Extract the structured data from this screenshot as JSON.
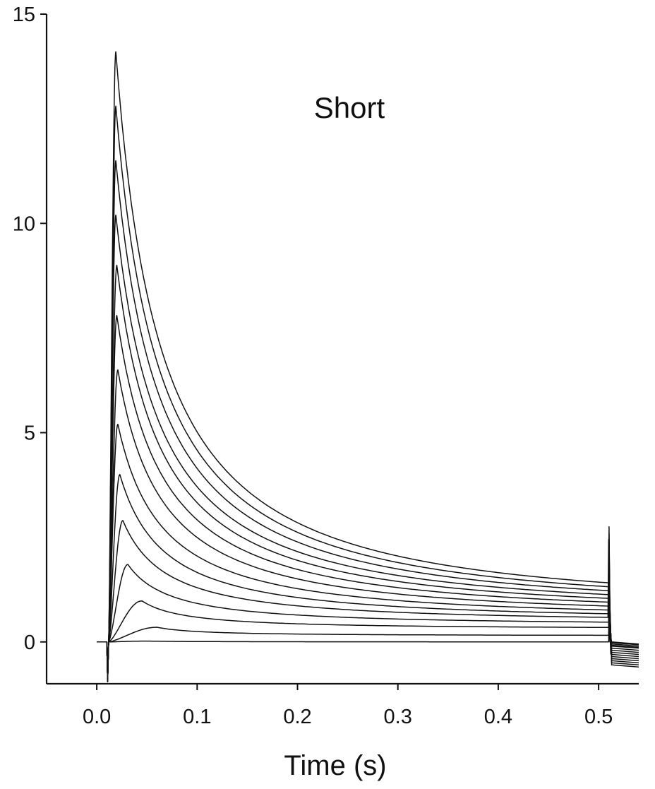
{
  "chart_data": {
    "type": "line",
    "title": "",
    "annotation": "Short",
    "xlabel": "Time (s)",
    "ylabel": "",
    "xlim": [
      -0.05,
      0.54
    ],
    "ylim": [
      -1,
      15
    ],
    "x_ticks": [
      0.0,
      0.1,
      0.2,
      0.3,
      0.4,
      0.5
    ],
    "x_tick_labels": [
      "0.0",
      "0.1",
      "0.2",
      "0.3",
      "0.4",
      "0.5"
    ],
    "y_ticks": [
      0,
      5,
      10,
      15
    ],
    "y_tick_labels": [
      "0",
      "5",
      "10",
      "15"
    ],
    "grid": false,
    "legend": "none",
    "pulse_start_s": 0.01,
    "pulse_end_s": 0.51,
    "series": [
      {
        "peak": 14.1,
        "peak_time": 0.019,
        "end_value": 0.95,
        "tail_value": -0.55
      },
      {
        "peak": 12.8,
        "peak_time": 0.019,
        "end_value": 0.9,
        "tail_value": -0.5
      },
      {
        "peak": 11.5,
        "peak_time": 0.019,
        "end_value": 0.85,
        "tail_value": -0.45
      },
      {
        "peak": 10.2,
        "peak_time": 0.019,
        "end_value": 0.8,
        "tail_value": -0.4
      },
      {
        "peak": 9.0,
        "peak_time": 0.02,
        "end_value": 0.75,
        "tail_value": -0.35
      },
      {
        "peak": 7.8,
        "peak_time": 0.02,
        "end_value": 0.7,
        "tail_value": -0.3
      },
      {
        "peak": 6.5,
        "peak_time": 0.021,
        "end_value": 0.65,
        "tail_value": -0.25
      },
      {
        "peak": 5.2,
        "peak_time": 0.021,
        "end_value": 0.6,
        "tail_value": -0.2
      },
      {
        "peak": 4.0,
        "peak_time": 0.023,
        "end_value": 0.55,
        "tail_value": -0.15
      },
      {
        "peak": 2.9,
        "peak_time": 0.026,
        "end_value": 0.5,
        "tail_value": -0.1
      },
      {
        "peak": 1.85,
        "peak_time": 0.031,
        "end_value": 0.42,
        "tail_value": -0.08
      },
      {
        "peak": 0.98,
        "peak_time": 0.045,
        "end_value": 0.32,
        "tail_value": -0.05
      },
      {
        "peak": 0.35,
        "peak_time": 0.06,
        "end_value": 0.15,
        "tail_value": -0.02
      },
      {
        "peak": 0.02,
        "peak_time": 0.05,
        "end_value": 0.0,
        "tail_value": 0.0
      }
    ]
  }
}
